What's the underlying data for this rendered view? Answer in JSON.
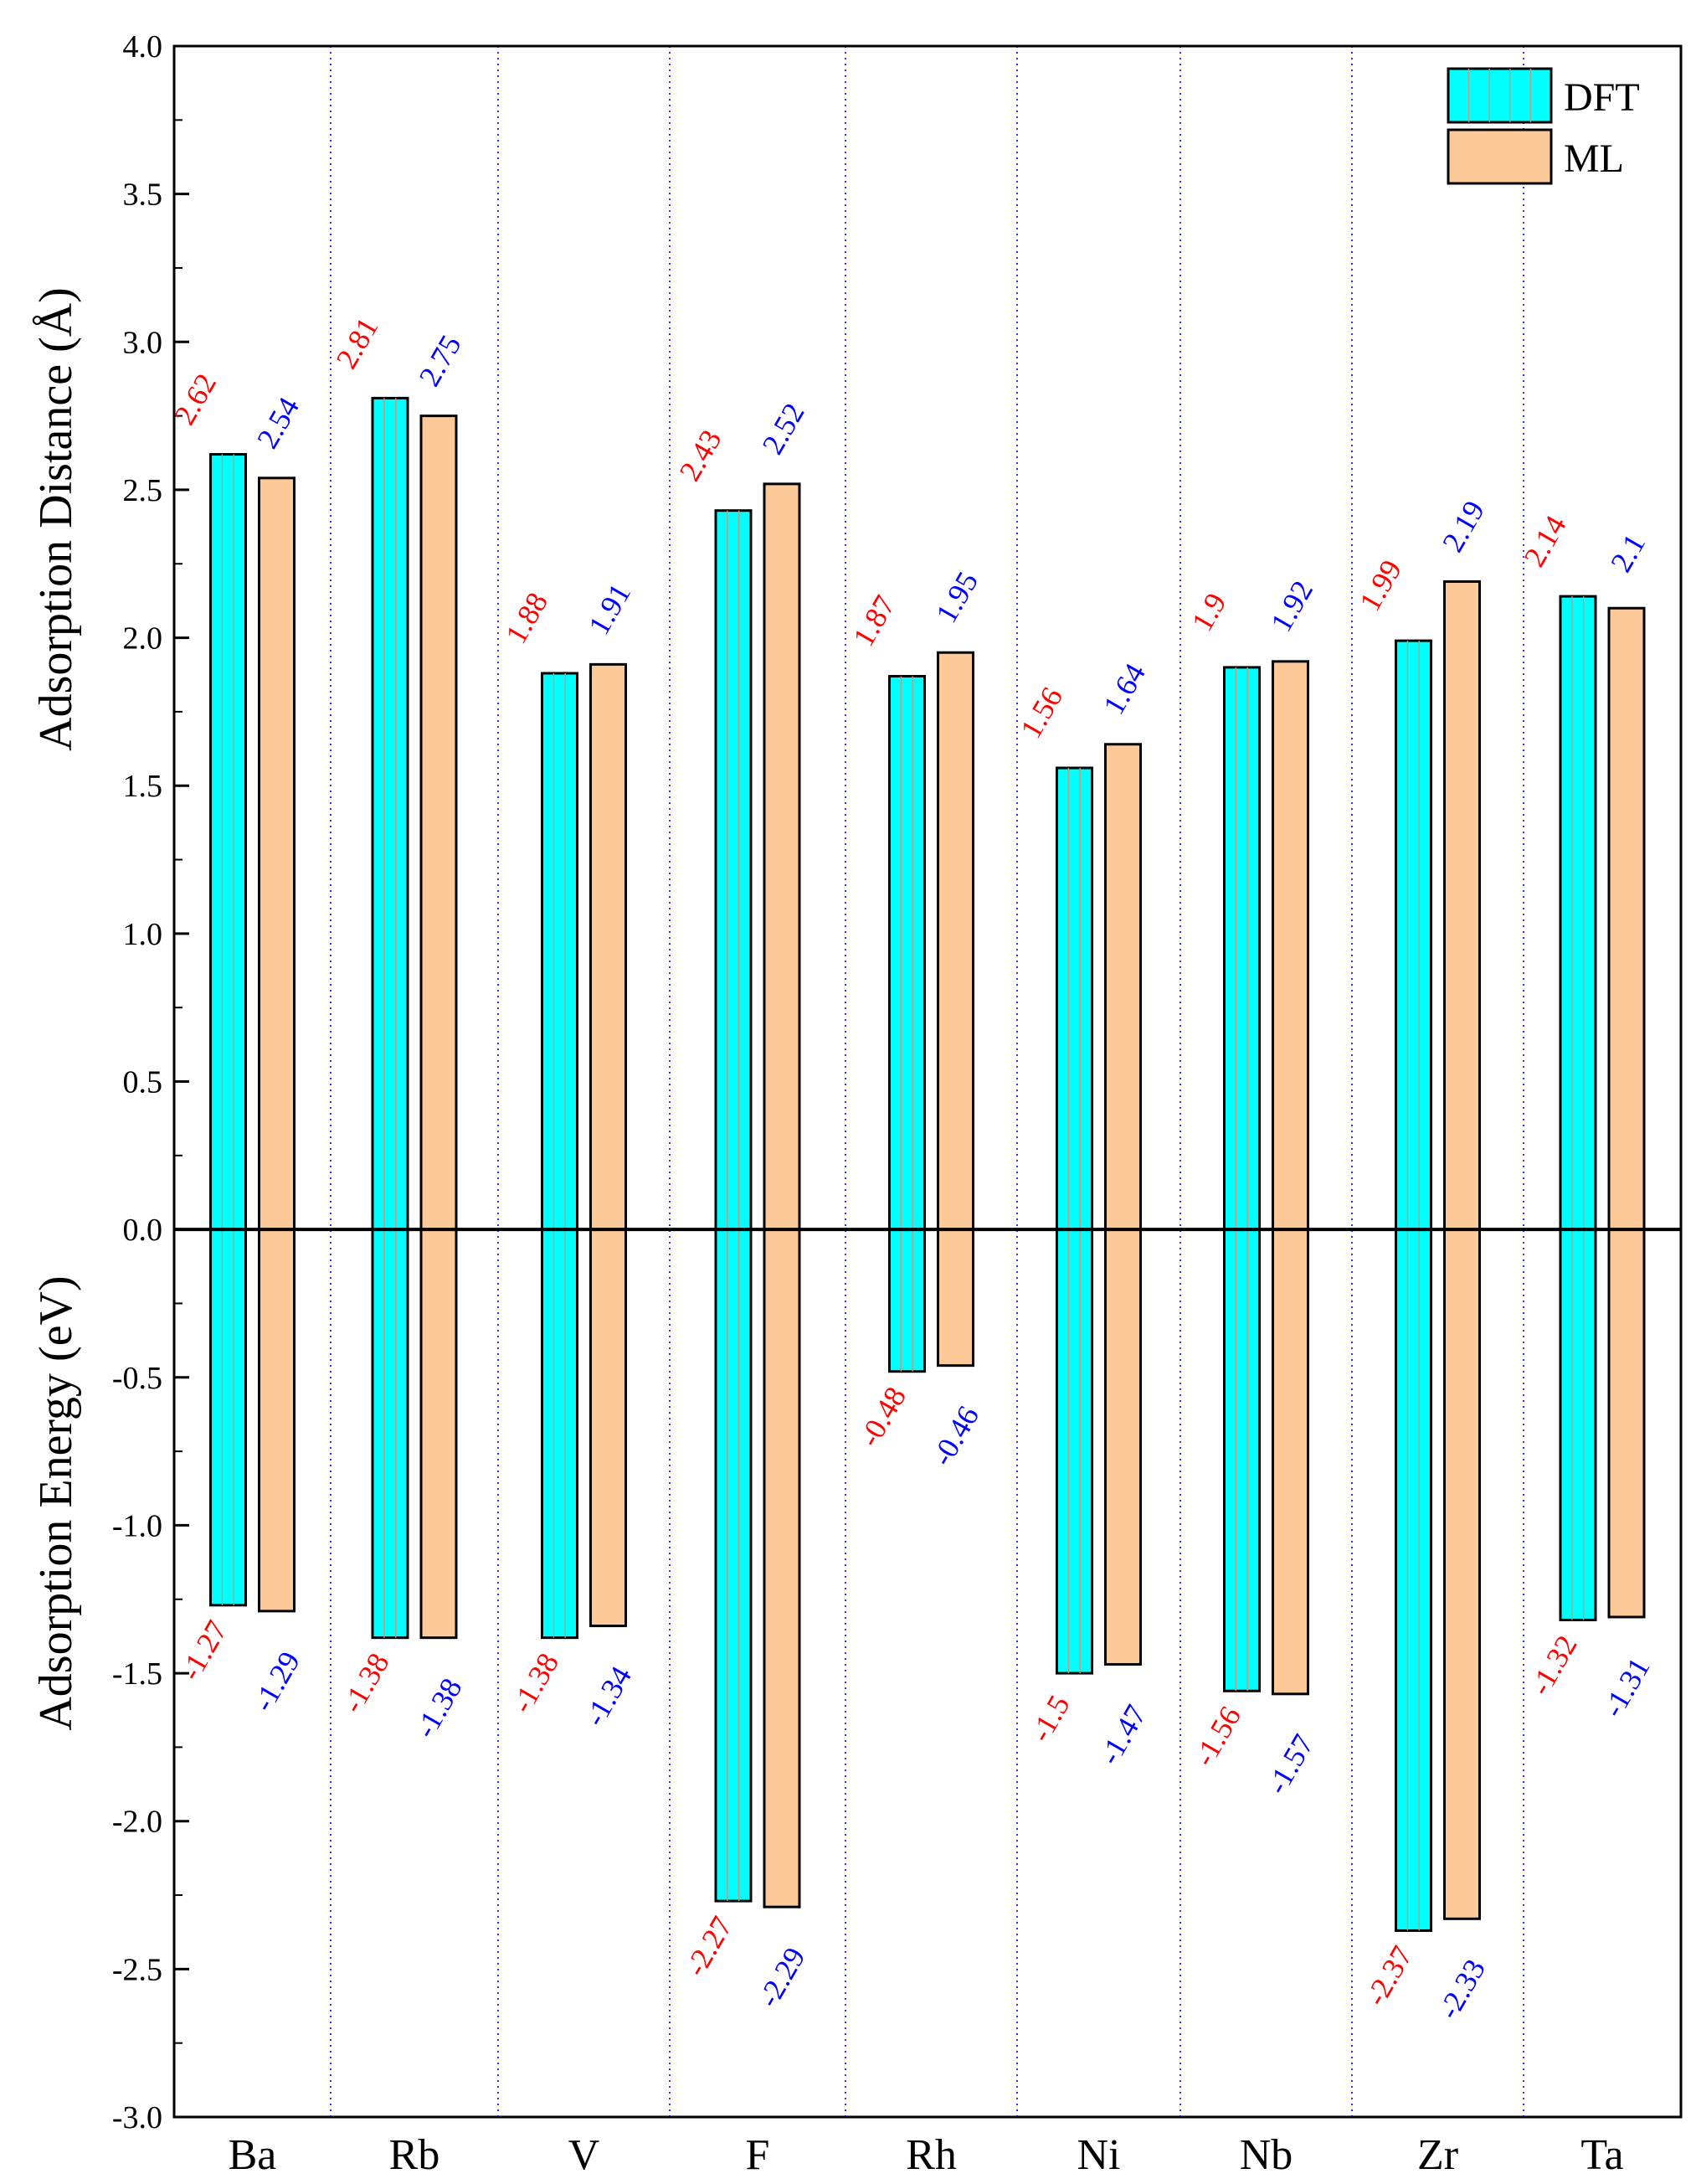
{
  "chart_data": {
    "type": "bar",
    "categories": [
      "Ba",
      "Rb",
      "V",
      "F",
      "Rh",
      "Ni",
      "Nb",
      "Zr",
      "Ta"
    ],
    "series_distance": [
      {
        "name": "DFT",
        "values": [
          2.62,
          2.81,
          1.88,
          2.43,
          1.87,
          1.56,
          1.9,
          1.99,
          2.14
        ],
        "color": "#00ffff",
        "label_color": "#ff0000"
      },
      {
        "name": "ML",
        "values": [
          2.54,
          2.75,
          1.91,
          2.52,
          1.95,
          1.64,
          1.92,
          2.19,
          2.1
        ],
        "color": "#fdc999",
        "label_color": "#0000ff"
      }
    ],
    "series_energy": [
      {
        "name": "DFT",
        "values": [
          -1.27,
          -1.38,
          -1.38,
          -2.27,
          -0.48,
          -1.5,
          -1.56,
          -2.37,
          -1.32
        ],
        "color": "#00ffff",
        "label_color": "#ff0000"
      },
      {
        "name": "ML",
        "values": [
          -1.29,
          -1.38,
          -1.34,
          -2.29,
          -0.46,
          -1.47,
          -1.57,
          -2.33,
          -1.31
        ],
        "color": "#fdc999",
        "label_color": "#0000ff"
      }
    ],
    "distance_labels": {
      "DFT": [
        "2.62",
        "2.81",
        "1.88",
        "2.43",
        "1.87",
        "1.56",
        "1.9",
        "1.99",
        "2.14"
      ],
      "ML": [
        "2.54",
        "2.75",
        "1.91",
        "2.52",
        "1.95",
        "1.64",
        "1.92",
        "2.19",
        "2.1"
      ]
    },
    "energy_labels": {
      "DFT": [
        "-1.27",
        "-1.38",
        "-1.38",
        "-2.27",
        "-0.48",
        "-1.5",
        "-1.56",
        "-2.37",
        "-1.32"
      ],
      "ML": [
        "-1.29",
        "-1.38",
        "-1.34",
        "-2.29",
        "-0.46",
        "-1.47",
        "-1.57",
        "-2.33",
        "-1.31"
      ]
    },
    "ylim": [
      -3.0,
      4.0
    ],
    "yticks": [
      "-3.0",
      "-2.5",
      "-2.0",
      "-1.5",
      "-1.0",
      "-0.5",
      "0.0",
      "0.5",
      "1.0",
      "1.5",
      "2.0",
      "2.5",
      "3.0",
      "3.5",
      "4.0"
    ],
    "ylabel_top": "Adsorption Distance (Å)",
    "ylabel_bottom": "Adsorption Energy (eV)",
    "legend": [
      "DFT",
      "ML"
    ],
    "legend_position": "top-right",
    "separators": "dotted blue vertical lines between categories"
  }
}
